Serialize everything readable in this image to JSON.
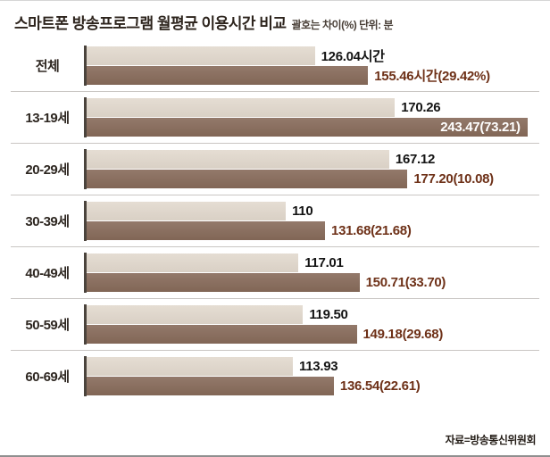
{
  "header": {
    "title": "스마트폰 방송프로그램 월평균 이용시간 비교",
    "subtitle": "괄호는 차이(%) 단위: 분"
  },
  "footer": {
    "source": "자료=방송통신위원회"
  },
  "colors": {
    "light_bar": "#ded5ca",
    "dark_bar": "#8a7062",
    "value1_text": "#141414",
    "value2_text": "#6e3118",
    "axis": "#4b443d"
  },
  "chart_data": {
    "type": "bar",
    "orientation": "horizontal",
    "title": "스마트폰 방송프로그램 월평균 이용시간 비교",
    "note": "괄호는 차이(%)",
    "unit": "분",
    "xlim": [
      0,
      250
    ],
    "grid": false,
    "legend": "none",
    "categories": [
      "전체",
      "13-19세",
      "20-29세",
      "30-39세",
      "40-49세",
      "50-59세",
      "60-69세"
    ],
    "series": [
      {
        "name": "bar-light",
        "values": [
          126.04,
          170.26,
          167.12,
          110,
          117.01,
          119.5,
          113.93
        ],
        "labels": [
          "126.04시간",
          "170.26",
          "167.12",
          "110",
          "117.01",
          "119.50",
          "113.93"
        ]
      },
      {
        "name": "bar-dark",
        "values": [
          155.46,
          243.47,
          177.2,
          131.68,
          150.71,
          149.18,
          136.54
        ],
        "labels": [
          "155.46시간(29.42%)",
          "243.47(73.21)",
          "177.20(10.08)",
          "131.68(21.68)",
          "150.71(33.70)",
          "149.18(29.68)",
          "136.54(22.61)"
        ],
        "label_inside_index": 1
      }
    ],
    "source": "자료=방송통신위원회"
  }
}
